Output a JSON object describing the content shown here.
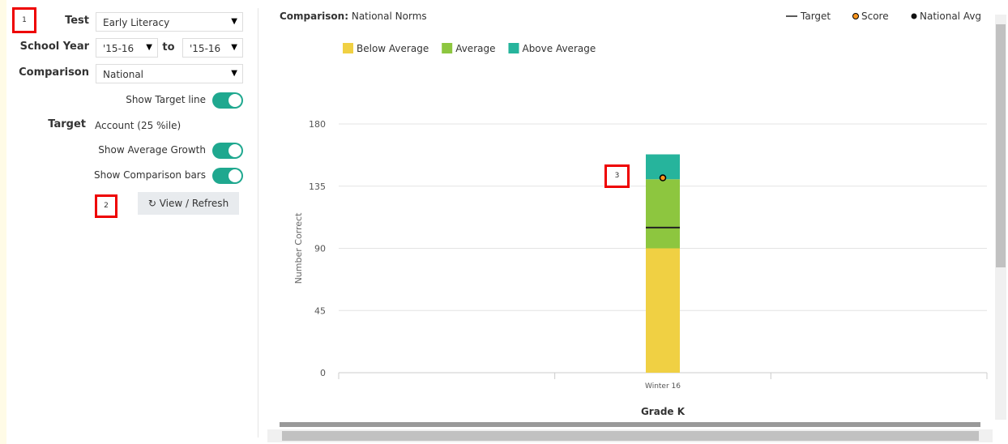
{
  "annotations": [
    "1",
    "2",
    "3"
  ],
  "controls": {
    "test": {
      "label": "Test",
      "value": "Early Literacy"
    },
    "school_year": {
      "label": "School Year",
      "from": "'15-16",
      "to_label": "to",
      "to": "'15-16"
    },
    "comparison": {
      "label": "Comparison",
      "value": "National"
    },
    "show_target_line": "Show Target line",
    "target": {
      "label": "Target",
      "value": "Account (25 %ile)"
    },
    "show_average_growth": "Show Average Growth",
    "show_comparison_bars": "Show Comparison bars",
    "refresh_button": "View / Refresh"
  },
  "chart_data": {
    "type": "bar",
    "stacked": true,
    "subtitle_label": "Comparison:",
    "subtitle": "National Norms",
    "categories": [
      null,
      "Winter 16",
      null
    ],
    "series": [
      {
        "name": "Below Average",
        "color": "#f0d043",
        "values": [
          null,
          90,
          null
        ]
      },
      {
        "name": "Average",
        "color": "#8dc63f",
        "values": [
          null,
          50,
          null
        ]
      },
      {
        "name": "Above Average",
        "color": "#26b49c",
        "values": [
          null,
          18,
          null
        ]
      }
    ],
    "target": {
      "name": "Target",
      "color": "#222222",
      "values": [
        null,
        105,
        null
      ]
    },
    "score": {
      "name": "Score",
      "color": "#f7941d",
      "values": [
        null,
        141,
        null
      ]
    },
    "national_avg": {
      "name": "National Avg",
      "color": "#111111"
    },
    "ylabel": "Number Correct",
    "xlabel": "Grade K",
    "ylim": [
      0,
      180
    ],
    "yticks": [
      0,
      45,
      90,
      135,
      180
    ],
    "grid": true
  }
}
